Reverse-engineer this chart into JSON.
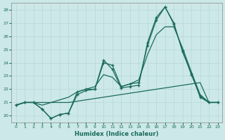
{
  "xlabel": "Humidex (Indice chaleur)",
  "bg_color": "#cce8e8",
  "grid_color": "#aacccc",
  "line_color": "#1a6b5a",
  "xlim": [
    -0.5,
    23.5
  ],
  "ylim": [
    19.5,
    28.5
  ],
  "xtick_labels": [
    "0",
    "1",
    "2",
    "3",
    "4",
    "5",
    "6",
    "7",
    "8",
    "9",
    "10",
    "11",
    "12",
    "13",
    "14",
    "15",
    "16",
    "17",
    "18",
    "19",
    "20",
    "21",
    "22",
    "23"
  ],
  "yticks": [
    20,
    21,
    22,
    23,
    24,
    25,
    26,
    27,
    28
  ],
  "series1_x": [
    0,
    1,
    2,
    3,
    4,
    5,
    6,
    7,
    8,
    9,
    10,
    11,
    12,
    13,
    14,
    15,
    16,
    17,
    18,
    19,
    20,
    21,
    22,
    23
  ],
  "series1_y": [
    20.8,
    21.0,
    21.0,
    20.5,
    19.8,
    20.1,
    20.2,
    21.8,
    22.0,
    22.0,
    24.2,
    23.5,
    22.1,
    22.2,
    22.3,
    25.5,
    27.4,
    28.2,
    26.9,
    24.9,
    23.1,
    21.5,
    21.0,
    21.0
  ],
  "series2_x": [
    0,
    1,
    2,
    3,
    4,
    5,
    6,
    7,
    8,
    9,
    10,
    11,
    12,
    13,
    14,
    15,
    16,
    17,
    18,
    19,
    20,
    21,
    22,
    23
  ],
  "series2_y": [
    20.8,
    21.0,
    21.0,
    20.5,
    19.8,
    20.1,
    20.2,
    21.6,
    21.9,
    22.0,
    24.0,
    23.8,
    22.2,
    22.4,
    22.5,
    25.3,
    27.2,
    28.2,
    27.0,
    24.8,
    23.2,
    21.4,
    21.0,
    21.0
  ],
  "series3_x": [
    0,
    1,
    2,
    3,
    4,
    5,
    6,
    7,
    8,
    9,
    10,
    11,
    12,
    13,
    14,
    15,
    16,
    17,
    18,
    19,
    20,
    21,
    22,
    23
  ],
  "series3_y": [
    20.8,
    21.0,
    21.0,
    21.0,
    21.0,
    21.0,
    21.0,
    21.1,
    21.2,
    21.3,
    21.4,
    21.5,
    21.6,
    21.7,
    21.8,
    21.9,
    22.0,
    22.1,
    22.2,
    22.3,
    22.4,
    22.5,
    21.0,
    21.0
  ],
  "series4_x": [
    0,
    1,
    2,
    3,
    4,
    5,
    6,
    7,
    8,
    9,
    10,
    11,
    12,
    13,
    14,
    15,
    16,
    17,
    18,
    19,
    20,
    21,
    22,
    23
  ],
  "series4_y": [
    20.8,
    21.0,
    21.0,
    20.8,
    21.0,
    21.2,
    21.4,
    21.8,
    22.0,
    22.2,
    23.1,
    22.9,
    22.2,
    22.4,
    22.7,
    24.6,
    26.1,
    26.7,
    26.7,
    25.1,
    23.3,
    21.6,
    21.0,
    21.0
  ]
}
